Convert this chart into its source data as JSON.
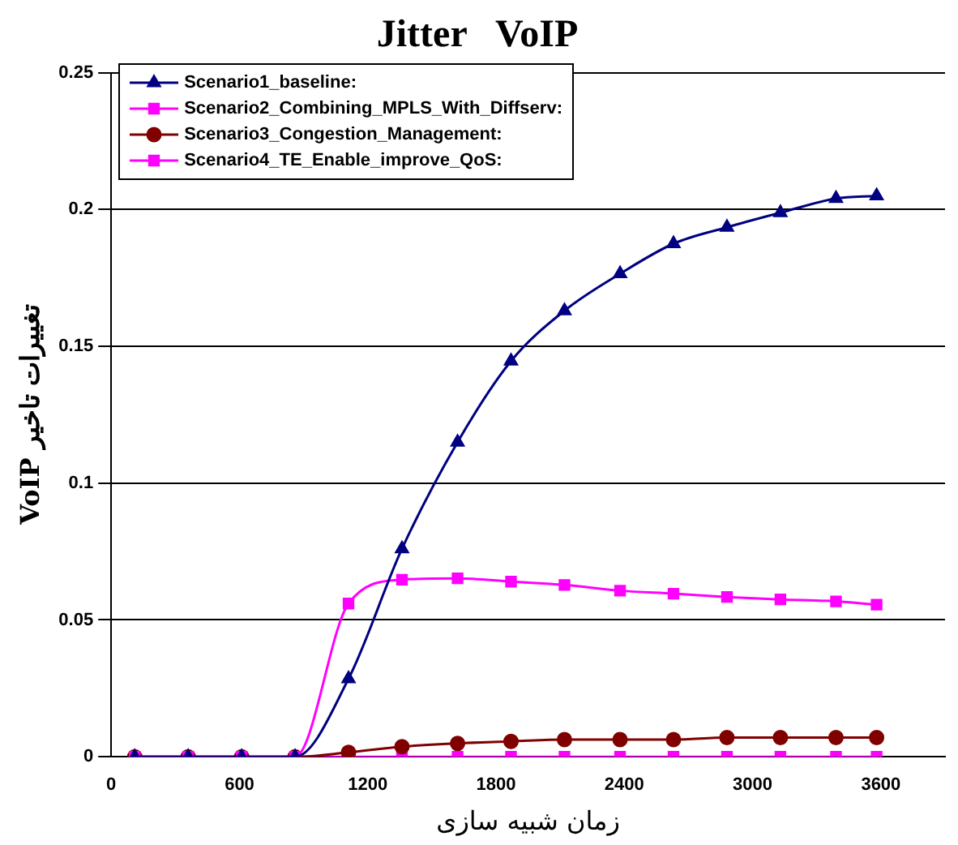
{
  "chart_data": {
    "type": "line",
    "title": "Jitter   VoIP",
    "xlabel": "زمان شبیه سازی",
    "ylabel": "VoIP تغییرات تاخیر",
    "x": [
      110,
      360,
      610,
      860,
      1110,
      1360,
      1620,
      1870,
      2120,
      2380,
      2630,
      2880,
      3130,
      3390,
      3580
    ],
    "xlim": [
      0,
      3900
    ],
    "xticks": [
      0,
      600,
      1200,
      1800,
      2400,
      3000,
      3600
    ],
    "ylim": [
      0,
      0.25
    ],
    "yticks": [
      0,
      0.05,
      0.1,
      0.15,
      0.2,
      0.25
    ],
    "grid": "y",
    "legend": "top left",
    "line_style": "solid",
    "series": [
      {
        "name": "Scenario1_baseline:",
        "color": "#000080",
        "marker": "triangle",
        "values": [
          0,
          0,
          0,
          0,
          0.0285,
          0.076,
          0.115,
          0.1446,
          0.163,
          0.1765,
          0.1875,
          0.1935,
          0.1988,
          0.204,
          0.205
        ]
      },
      {
        "name": "Scenario2_Combining_MPLS_With_Diffserv:",
        "color": "#ff00ff",
        "marker": "square",
        "values": [
          0,
          0,
          0,
          0,
          0.056,
          0.0647,
          0.0652,
          0.064,
          0.0628,
          0.0607,
          0.0596,
          0.0584,
          0.0575,
          0.0568,
          0.0556
        ]
      },
      {
        "name": "Scenario3_Congestion_Management:",
        "color": "#800000",
        "marker": "circle",
        "values": [
          0,
          0,
          0,
          0,
          0.0016,
          0.0037,
          0.0049,
          0.0056,
          0.0063,
          0.0063,
          0.0063,
          0.007,
          0.007,
          0.007,
          0.007
        ]
      },
      {
        "name": "Scenario4_TE_Enable_improve_QoS:",
        "color": "#ff00ff",
        "marker": "square",
        "values": [
          0,
          0,
          0,
          0,
          0,
          0,
          0,
          0,
          0,
          0,
          0,
          0,
          0,
          0,
          0
        ]
      }
    ]
  }
}
